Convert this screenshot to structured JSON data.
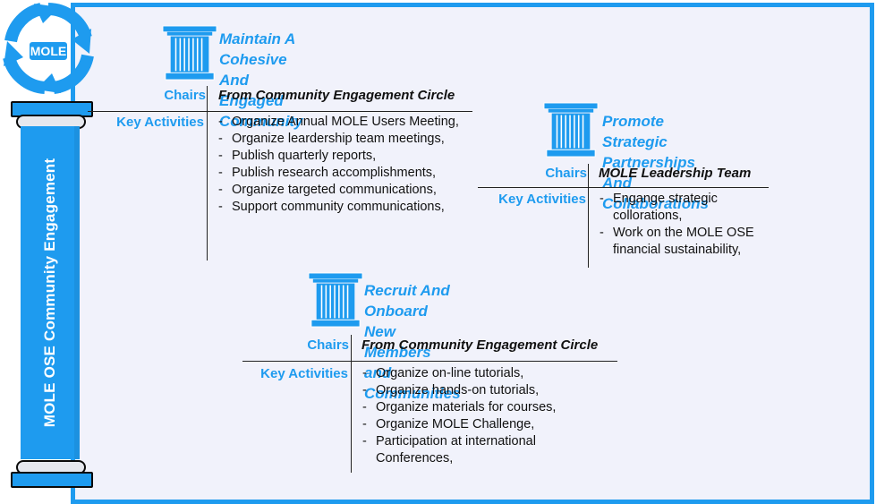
{
  "sidebar": {
    "logo_text": "MOLE",
    "column_label": "MOLE OSE Community Engagement"
  },
  "colors": {
    "accent": "#1e9bef",
    "panel_background": "#f1f2fb",
    "text": "#111111"
  },
  "icons": [
    "mole-logo-icon",
    "pillar-icon"
  ],
  "chairs_label": "Chairs",
  "key_activities_label": "Key Activities",
  "blocks": [
    {
      "title_line1": "Maintain A Cohesive And",
      "title_line2": "Engaged Community",
      "chairs": "From Community Engagement Circle",
      "activities": [
        "Organize Annual MOLE Users Meeting,",
        "Organize leardership team meetings,",
        "Publish quarterly reports,",
        "Publish research accomplishments,",
        "Organize targeted communications,",
        "Support community communications,"
      ]
    },
    {
      "title_line1": "Promote Strategic Partnerships",
      "title_line2": "And Collaborations",
      "chairs": "MOLE Leadership Team",
      "activities": [
        "Engange strategic collorations,",
        "Work on the MOLE OSE financial sustainability,"
      ]
    },
    {
      "title_line1": "Recruit And Onboard New",
      "title_line2": "Members and Communities",
      "chairs": "From Community Engagement Circle",
      "activities": [
        "Organize on-line tutorials,",
        "Organize hands-on tutorials,",
        "Organize materials for courses,",
        "Organize MOLE Challenge,",
        "Participation at international Conferences,"
      ]
    }
  ]
}
